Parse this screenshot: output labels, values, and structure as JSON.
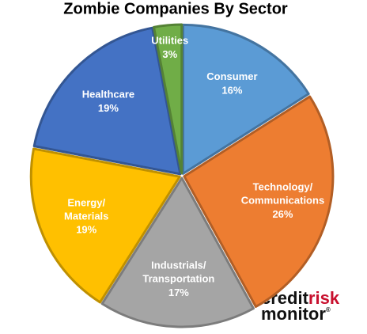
{
  "chart_data": {
    "type": "pie",
    "title": "Zombie Companies By Sector",
    "categories": [
      "Consumer",
      "Technology/Communications",
      "Industrials/Transportation",
      "Energy/Materials",
      "Healthcare",
      "Utilities"
    ],
    "values": [
      16,
      26,
      17,
      19,
      19,
      3
    ],
    "value_labels": [
      "16%",
      "26%",
      "17%",
      "19%",
      "19%",
      "3%"
    ],
    "colors": [
      "#5b9bd5",
      "#ed7d31",
      "#a5a5a5",
      "#ffc000",
      "#4472c4",
      "#70ad47"
    ]
  },
  "logo": {
    "credit": "credit",
    "risk": "risk",
    "monitor": "monitor",
    "mark": "®"
  }
}
